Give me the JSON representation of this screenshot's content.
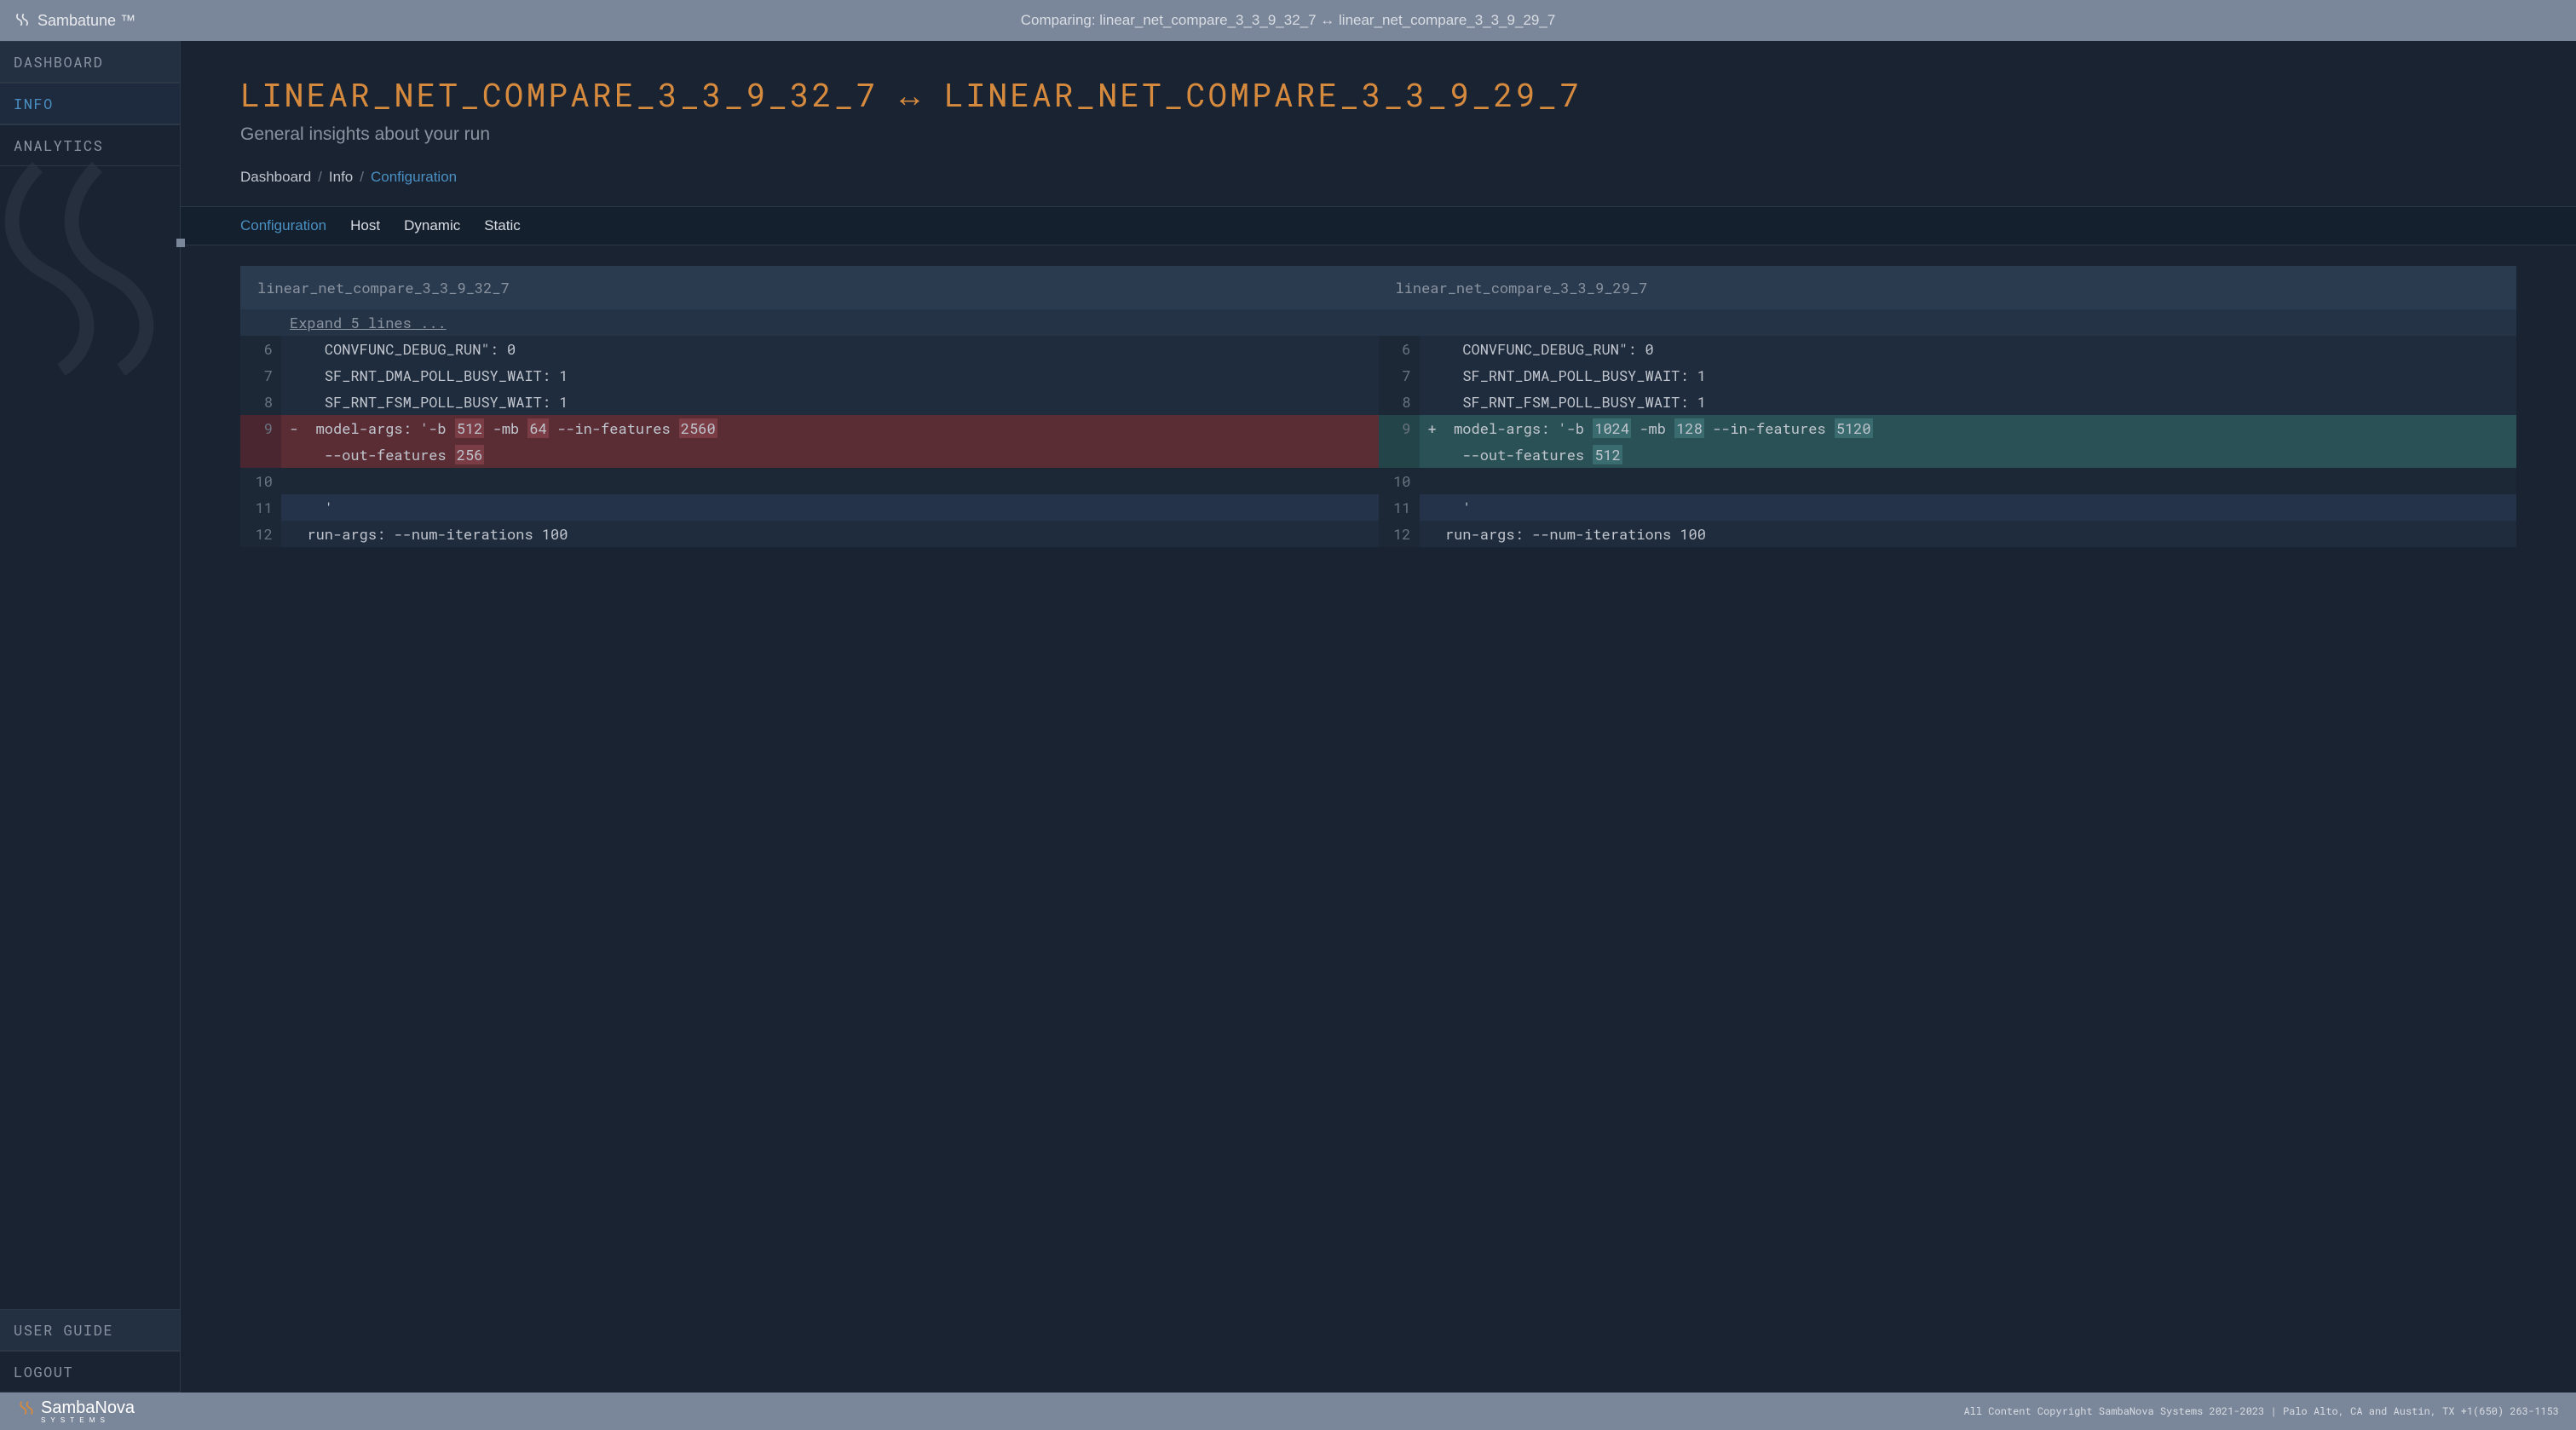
{
  "topbar": {
    "brand": "Sambatune ™",
    "comparing": "Comparing: linear_net_compare_3_3_9_32_7 ↔ linear_net_compare_3_3_9_29_7"
  },
  "sidebar": {
    "items": [
      {
        "label": "DASHBOARD",
        "active": false
      },
      {
        "label": "INFO",
        "active": true
      },
      {
        "label": "ANALYTICS",
        "active": false
      }
    ],
    "bottom": [
      {
        "label": "USER GUIDE"
      },
      {
        "label": "LOGOUT"
      }
    ]
  },
  "heading": {
    "title": "LINEAR_NET_COMPARE_3_3_9_32_7 ↔ LINEAR_NET_COMPARE_3_3_9_29_7",
    "subtitle": "General insights about your run"
  },
  "breadcrumb": {
    "items": [
      "Dashboard",
      "Info",
      "Configuration"
    ]
  },
  "tabs": {
    "items": [
      "Configuration",
      "Host",
      "Dynamic",
      "Static"
    ],
    "active": 0
  },
  "diff": {
    "left_title": "linear_net_compare_3_3_9_32_7",
    "right_title": "linear_net_compare_3_3_9_29_7",
    "expand_text": "Expand 5 lines ...",
    "left_lines": [
      {
        "n": "6",
        "type": "ctx",
        "text": "    CONVFUNC_DEBUG_RUN\": 0"
      },
      {
        "n": "7",
        "type": "ctx",
        "text": "    SF_RNT_DMA_POLL_BUSY_WAIT: 1"
      },
      {
        "n": "8",
        "type": "ctx",
        "text": "    SF_RNT_FSM_POLL_BUSY_WAIT: 1"
      },
      {
        "n": "9",
        "type": "del",
        "segments": [
          {
            "t": "-  model-args: '-b "
          },
          {
            "t": "512",
            "hl": true
          },
          {
            "t": " -mb "
          },
          {
            "t": "64",
            "hl": true
          },
          {
            "t": " --in-features "
          },
          {
            "t": "2560",
            "hl": true
          }
        ]
      },
      {
        "n": "",
        "type": "del",
        "segments": [
          {
            "t": "    --out-features "
          },
          {
            "t": "256",
            "hl": true
          }
        ]
      },
      {
        "n": "10",
        "type": "blank",
        "text": ""
      },
      {
        "n": "11",
        "type": "ctx2",
        "text": "    '"
      },
      {
        "n": "12",
        "type": "ctx",
        "text": "  run-args: --num-iterations 100"
      }
    ],
    "right_lines": [
      {
        "n": "6",
        "type": "ctx",
        "text": "    CONVFUNC_DEBUG_RUN\": 0"
      },
      {
        "n": "7",
        "type": "ctx",
        "text": "    SF_RNT_DMA_POLL_BUSY_WAIT: 1"
      },
      {
        "n": "8",
        "type": "ctx",
        "text": "    SF_RNT_FSM_POLL_BUSY_WAIT: 1"
      },
      {
        "n": "9",
        "type": "add",
        "segments": [
          {
            "t": "+  model-args: '-b "
          },
          {
            "t": "1024",
            "hl": true
          },
          {
            "t": " -mb "
          },
          {
            "t": "128",
            "hl": true
          },
          {
            "t": " --in-features "
          },
          {
            "t": "5120",
            "hl": true
          }
        ]
      },
      {
        "n": "",
        "type": "add",
        "segments": [
          {
            "t": "    --out-features "
          },
          {
            "t": "512",
            "hl": true
          }
        ]
      },
      {
        "n": "10",
        "type": "blank",
        "text": ""
      },
      {
        "n": "11",
        "type": "ctx2",
        "text": "    '"
      },
      {
        "n": "12",
        "type": "ctx",
        "text": "  run-args: --num-iterations 100"
      }
    ]
  },
  "footer": {
    "brand": "SambaNova",
    "brand_sub": "S Y S T E M S",
    "copyright": "All Content Copyright SambaNova Systems 2021-2023 | Palo Alto, CA and Austin, TX +1(650) 263-1153"
  },
  "colors": {
    "topbar_bg": "#7a8699",
    "page_bg": "#1a2332",
    "accent_blue": "#4a90c2",
    "accent_orange": "#d68a3e",
    "del_bg": "#5a2d35",
    "add_bg": "#2a5155"
  }
}
